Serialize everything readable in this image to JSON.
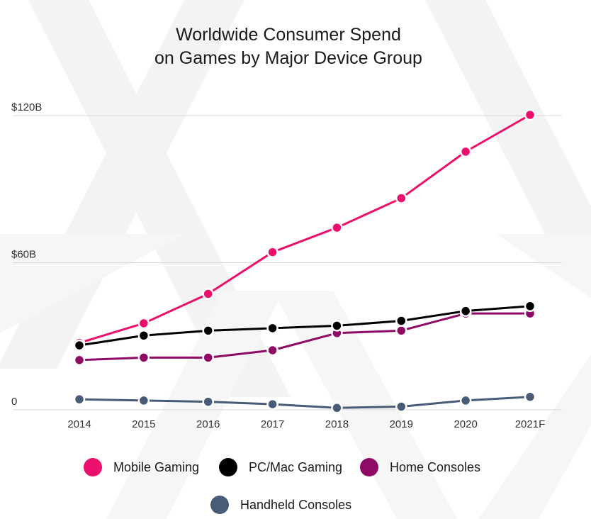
{
  "chart_data": {
    "type": "line",
    "title_lines": [
      "Worldwide Consumer Spend",
      "on Games by Major Device Group"
    ],
    "categories": [
      "2014",
      "2015",
      "2016",
      "2017",
      "2018",
      "2019",
      "2020",
      "2021F"
    ],
    "y_ticks": [
      {
        "value": 0,
        "label": "0"
      },
      {
        "value": 60,
        "label": "$60B"
      },
      {
        "value": 120,
        "label": "$120B"
      }
    ],
    "ylim": [
      0,
      120
    ],
    "grid": true,
    "legend_position": "bottom",
    "series": [
      {
        "name": "Mobile Gaming",
        "color": "#ec0f6b",
        "values": [
          27,
          35,
          47,
          64,
          74,
          86,
          105,
          120
        ]
      },
      {
        "name": "PC/Mac Gaming",
        "color": "#000000",
        "values": [
          26,
          30,
          32,
          33,
          34,
          36,
          40,
          42
        ]
      },
      {
        "name": "Home Consoles",
        "color": "#8e0a64",
        "values": [
          20,
          21,
          21,
          24,
          31,
          32,
          39,
          39
        ]
      },
      {
        "name": "Handheld Consoles",
        "color": "#485b77",
        "values": [
          4,
          3.5,
          3,
          2,
          0.5,
          1,
          3.5,
          5
        ]
      }
    ]
  }
}
